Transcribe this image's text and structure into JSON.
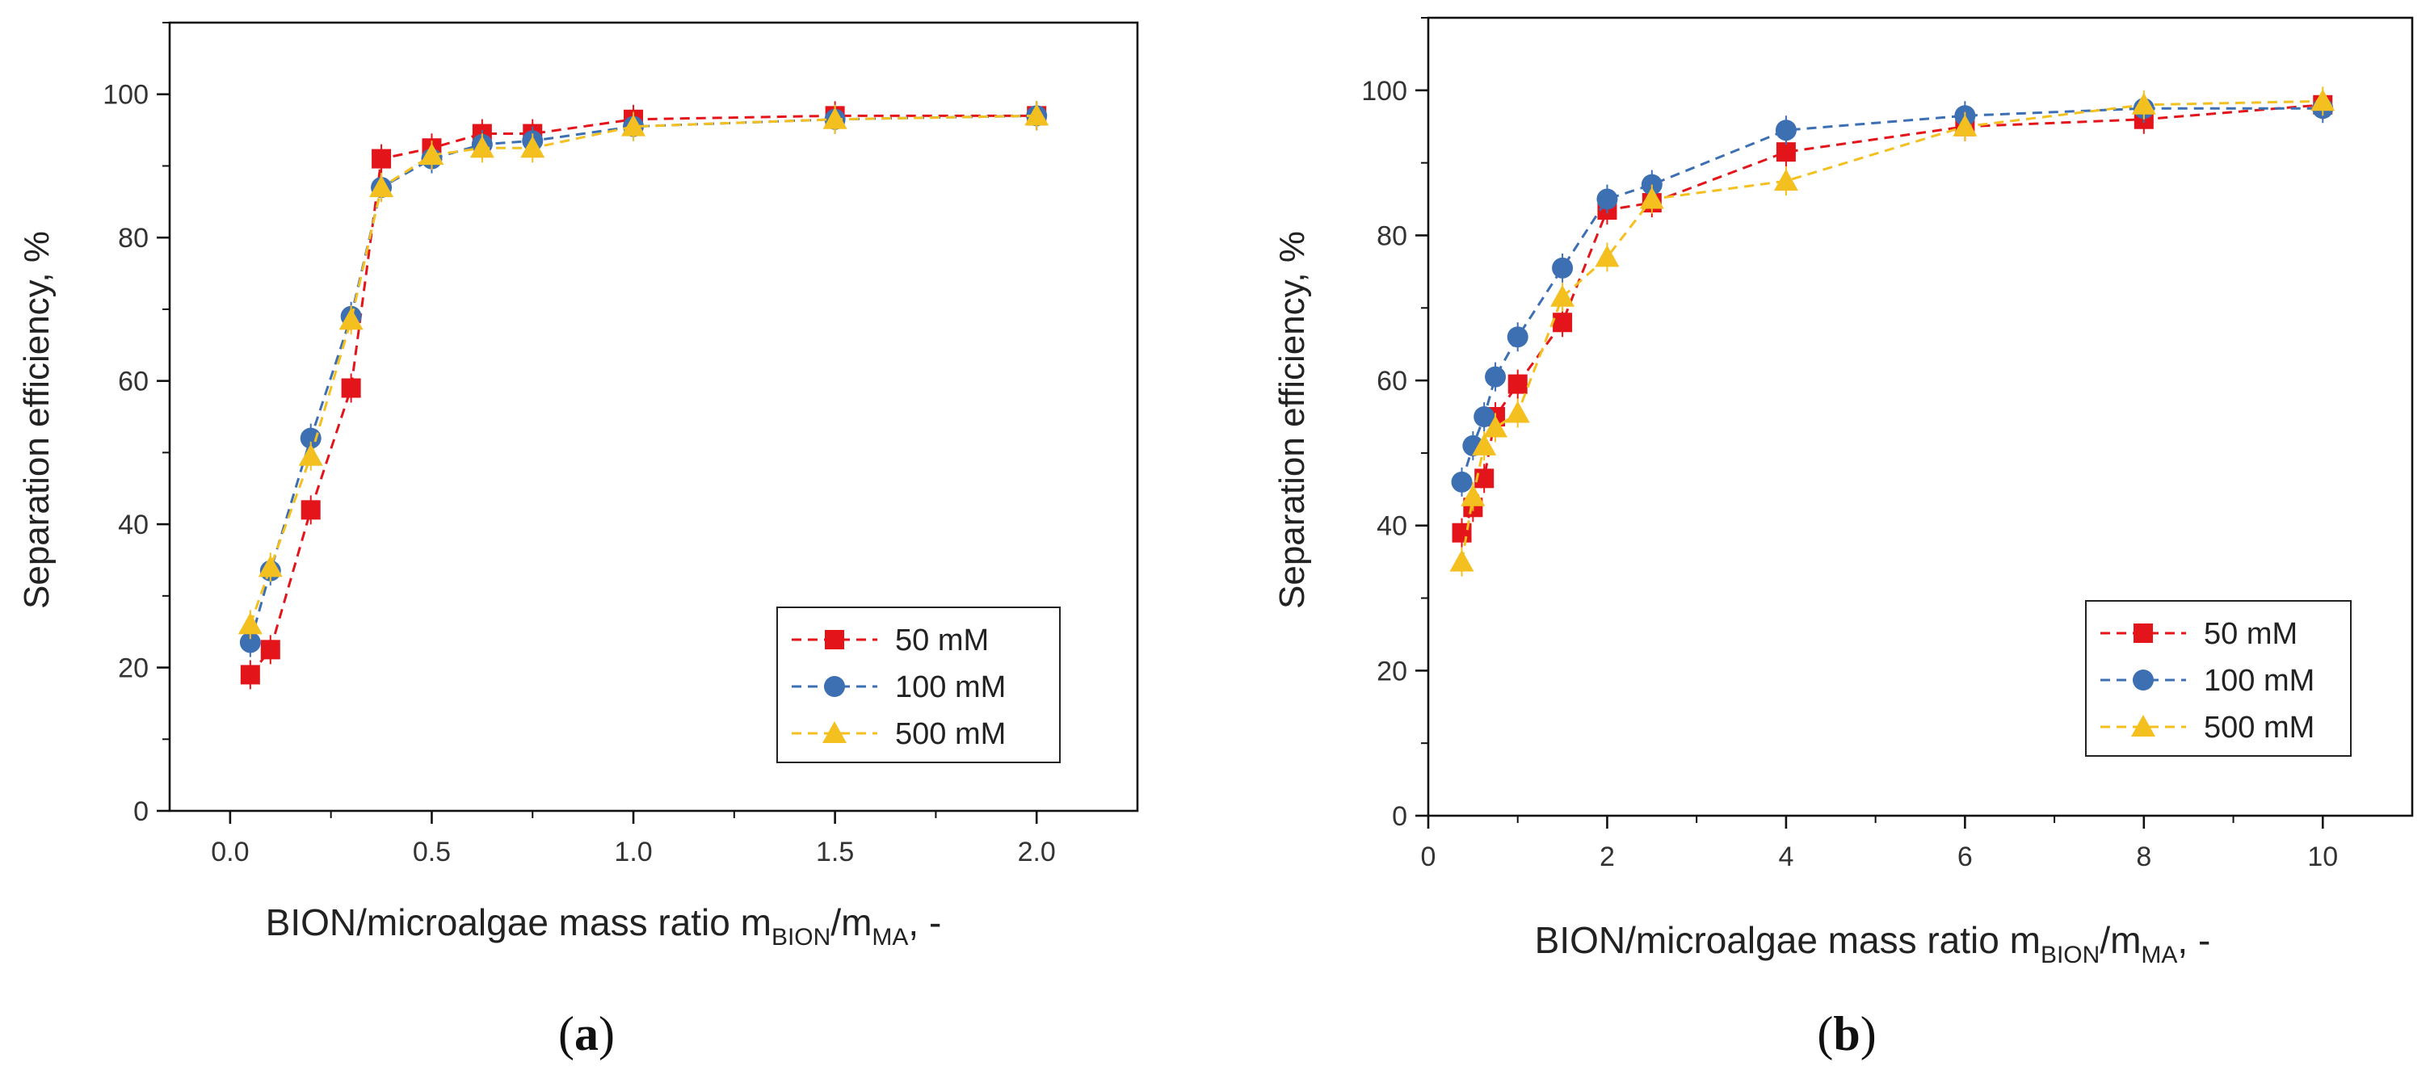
{
  "chart_data": [
    {
      "panel": "a",
      "type": "line",
      "marker_style": "dashed-with-markers",
      "ylabel": "Separation efficiency, %",
      "xlabel_main": "BION/microalgae mass ratio m",
      "xlabel_sub1": "BION",
      "xlabel_mid": "/m",
      "xlabel_sub2": "MA",
      "xlabel_end": ", -",
      "xlim": [
        -0.15,
        2.25
      ],
      "ylim": [
        0,
        110
      ],
      "xticks": [
        0.0,
        0.5,
        1.0,
        1.5,
        2.0
      ],
      "xtick_labels": [
        "0.0",
        "0.5",
        "1.0",
        "1.5",
        "2.0"
      ],
      "yticks": [
        0,
        20,
        40,
        60,
        80,
        100
      ],
      "ytick_labels": [
        "0",
        "20",
        "40",
        "60",
        "80",
        "100"
      ],
      "legend_position": "bottom-right",
      "series": [
        {
          "name": "50 mM",
          "color": "#e3151b",
          "marker": "square",
          "x": [
            0.05,
            0.1,
            0.2,
            0.3,
            0.375,
            0.5,
            0.625,
            0.75,
            1.0,
            1.5,
            2.0
          ],
          "y": [
            19,
            22.5,
            42,
            59,
            91,
            92.5,
            94.5,
            94.5,
            96.5,
            97,
            97
          ]
        },
        {
          "name": "100 mM",
          "color": "#3d6fb3",
          "marker": "circle",
          "x": [
            0.05,
            0.1,
            0.2,
            0.3,
            0.375,
            0.5,
            0.625,
            0.75,
            1.0,
            1.5,
            2.0
          ],
          "y": [
            23.5,
            33.5,
            52,
            69,
            87,
            91,
            93,
            93.5,
            95.5,
            96.5,
            97
          ]
        },
        {
          "name": "500 mM",
          "color": "#f4c020",
          "marker": "triangle",
          "x": [
            0.05,
            0.1,
            0.2,
            0.3,
            0.375,
            0.5,
            0.625,
            0.75,
            1.0,
            1.5,
            2.0
          ],
          "y": [
            26,
            34,
            49.5,
            68.5,
            87,
            91.5,
            92.5,
            92.5,
            95.5,
            96.5,
            97
          ]
        }
      ]
    },
    {
      "panel": "b",
      "type": "line",
      "marker_style": "dashed-with-markers",
      "ylabel": "Separation efficiency, %",
      "xlabel_main": "BION/microalgae mass ratio m",
      "xlabel_sub1": "BION",
      "xlabel_mid": "/m",
      "xlabel_sub2": "MA",
      "xlabel_end": ", -",
      "xlim": [
        0,
        11
      ],
      "ylim": [
        0,
        110
      ],
      "xticks": [
        0,
        2,
        4,
        6,
        8,
        10
      ],
      "xtick_labels": [
        "0",
        "2",
        "4",
        "6",
        "8",
        "10"
      ],
      "yticks": [
        0,
        20,
        40,
        60,
        80,
        100
      ],
      "ytick_labels": [
        "0",
        "20",
        "40",
        "60",
        "80",
        "100"
      ],
      "legend_position": "bottom-right",
      "series": [
        {
          "name": "50 mM",
          "color": "#e3151b",
          "marker": "square",
          "x": [
            0.375,
            0.5,
            0.625,
            0.75,
            1.0,
            1.5,
            2.0,
            2.5,
            4.0,
            6.0,
            8.0,
            10.0
          ],
          "y": [
            39,
            42.5,
            46.5,
            55,
            59.5,
            68,
            83.5,
            84.5,
            91.5,
            95,
            96,
            98
          ]
        },
        {
          "name": "100 mM",
          "color": "#3d6fb3",
          "marker": "circle",
          "x": [
            0.375,
            0.5,
            0.625,
            0.75,
            1.0,
            1.5,
            2.0,
            2.5,
            4.0,
            6.0,
            8.0,
            10.0
          ],
          "y": [
            46,
            51,
            55,
            60.5,
            66,
            75.5,
            85,
            87,
            94.5,
            96.5,
            97.5,
            97.5
          ]
        },
        {
          "name": "500 mM",
          "color": "#f4c020",
          "marker": "triangle",
          "x": [
            0.375,
            0.5,
            0.625,
            0.75,
            1.0,
            1.5,
            2.0,
            2.5,
            4.0,
            6.0,
            8.0,
            10.0
          ],
          "y": [
            35,
            44,
            51,
            53.5,
            55.5,
            71.5,
            77,
            85,
            87.5,
            95,
            98,
            98.5
          ]
        }
      ]
    }
  ],
  "panel_labels": [
    {
      "open": "(",
      "letter": "a",
      "close": ")"
    },
    {
      "open": "(",
      "letter": "b",
      "close": ")"
    }
  ]
}
